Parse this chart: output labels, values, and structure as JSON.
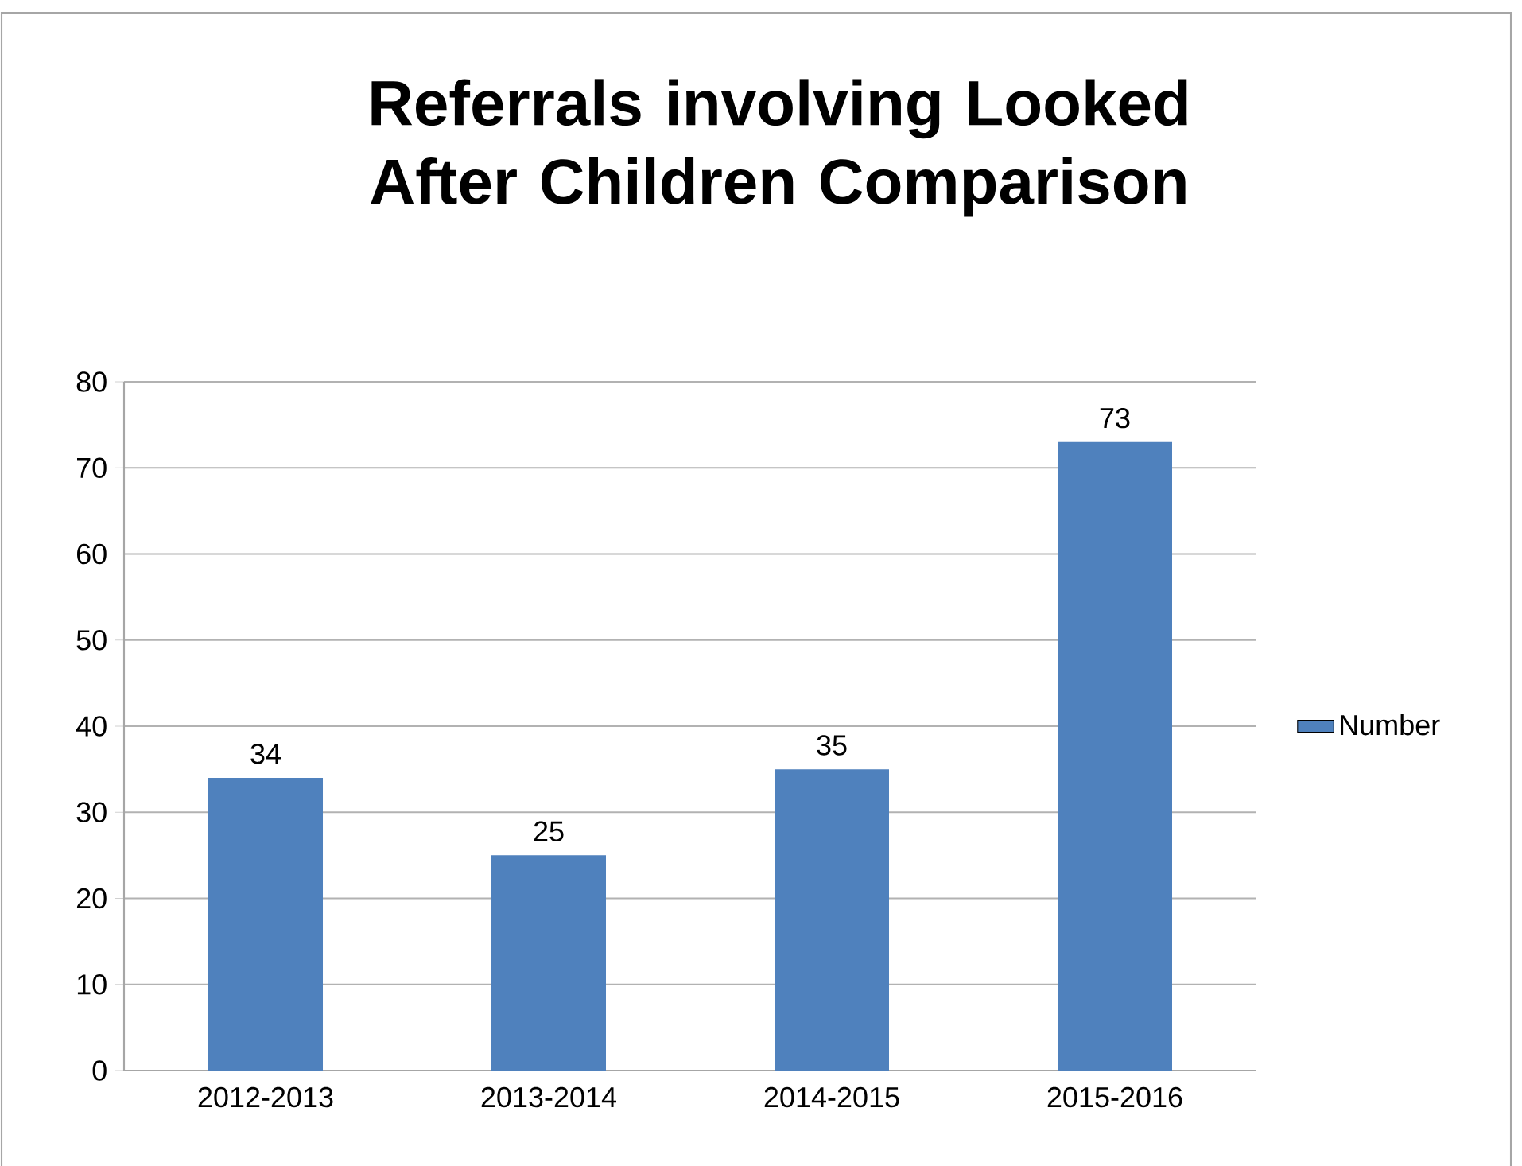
{
  "chart_data": {
    "type": "bar",
    "title": "Referrals involving Looked After Children Comparison",
    "categories": [
      "2012-2013",
      "2013-2014",
      "2014-2015",
      "2015-2016"
    ],
    "series": [
      {
        "name": "Number",
        "color": "#4f81bd",
        "values": [
          34,
          25,
          35,
          73
        ]
      }
    ],
    "ylim": [
      0,
      80
    ],
    "yticks": [
      0,
      10,
      20,
      30,
      40,
      50,
      60,
      70,
      80
    ],
    "grid": "y",
    "legend": "right",
    "data_labels": true
  }
}
